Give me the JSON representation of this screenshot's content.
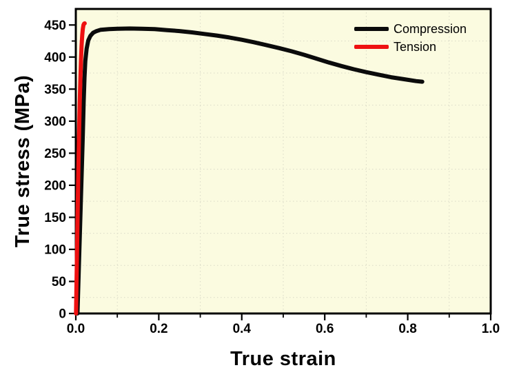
{
  "chart_data": {
    "type": "line",
    "title": "",
    "xlabel": "True strain",
    "ylabel": "True stress (MPa)",
    "xlim": [
      0.0,
      1.0
    ],
    "ylim": [
      0,
      475
    ],
    "x_major_ticks": [
      0.0,
      0.2,
      0.4,
      0.6,
      0.8,
      1.0
    ],
    "x_tick_labels": [
      "0.0",
      "0.2",
      "0.4",
      "0.6",
      "0.8",
      "1.0"
    ],
    "x_minor_ticks": [
      0.1,
      0.3,
      0.5,
      0.7,
      0.9
    ],
    "y_major_ticks": [
      0,
      50,
      100,
      150,
      200,
      250,
      300,
      350,
      400,
      450
    ],
    "y_tick_labels": [
      "0",
      "50",
      "100",
      "150",
      "200",
      "250",
      "300",
      "350",
      "400",
      "450"
    ],
    "y_minor_ticks": [
      25,
      75,
      125,
      175,
      225,
      275,
      325,
      375,
      425
    ],
    "grid": "dotted-at-minor-ticks",
    "legend_position": "top-right-inside",
    "colors": {
      "plot_bg": "#FBFBE0",
      "grid": "#D9D9C6",
      "frame": "#000000",
      "compression": "#0B0B0B",
      "tension": "#EE1111"
    },
    "series": [
      {
        "name": "Compression",
        "color": "#0B0B0B",
        "points": [
          [
            0.004,
            0
          ],
          [
            0.0075,
            75
          ],
          [
            0.011,
            150
          ],
          [
            0.0145,
            225
          ],
          [
            0.017,
            280
          ],
          [
            0.019,
            330
          ],
          [
            0.021,
            368
          ],
          [
            0.023,
            394
          ],
          [
            0.026,
            413
          ],
          [
            0.03,
            426
          ],
          [
            0.035,
            433
          ],
          [
            0.042,
            438
          ],
          [
            0.05,
            440.5
          ],
          [
            0.06,
            442.5
          ],
          [
            0.08,
            443.5
          ],
          [
            0.1,
            444
          ],
          [
            0.13,
            444.5
          ],
          [
            0.16,
            444
          ],
          [
            0.19,
            443.5
          ],
          [
            0.22,
            442
          ],
          [
            0.25,
            440.5
          ],
          [
            0.28,
            438.5
          ],
          [
            0.31,
            436
          ],
          [
            0.34,
            433.5
          ],
          [
            0.37,
            430.5
          ],
          [
            0.4,
            427
          ],
          [
            0.43,
            423
          ],
          [
            0.46,
            418.5
          ],
          [
            0.49,
            414
          ],
          [
            0.52,
            409
          ],
          [
            0.55,
            403.5
          ],
          [
            0.58,
            397.5
          ],
          [
            0.61,
            391.5
          ],
          [
            0.64,
            386
          ],
          [
            0.67,
            381
          ],
          [
            0.7,
            376.5
          ],
          [
            0.73,
            372.5
          ],
          [
            0.76,
            368.5
          ],
          [
            0.79,
            365.5
          ],
          [
            0.82,
            362.5
          ],
          [
            0.835,
            361.5
          ]
        ]
      },
      {
        "name": "Tension",
        "color": "#EE1111",
        "points": [
          [
            0.0005,
            0
          ],
          [
            0.002,
            60
          ],
          [
            0.0035,
            120
          ],
          [
            0.005,
            180
          ],
          [
            0.0065,
            235
          ],
          [
            0.008,
            285
          ],
          [
            0.0095,
            330
          ],
          [
            0.011,
            365
          ],
          [
            0.0125,
            395
          ],
          [
            0.014,
            418
          ],
          [
            0.0155,
            434
          ],
          [
            0.017,
            444
          ],
          [
            0.0185,
            450
          ],
          [
            0.02,
            452
          ],
          [
            0.0215,
            452.5
          ]
        ]
      }
    ]
  }
}
